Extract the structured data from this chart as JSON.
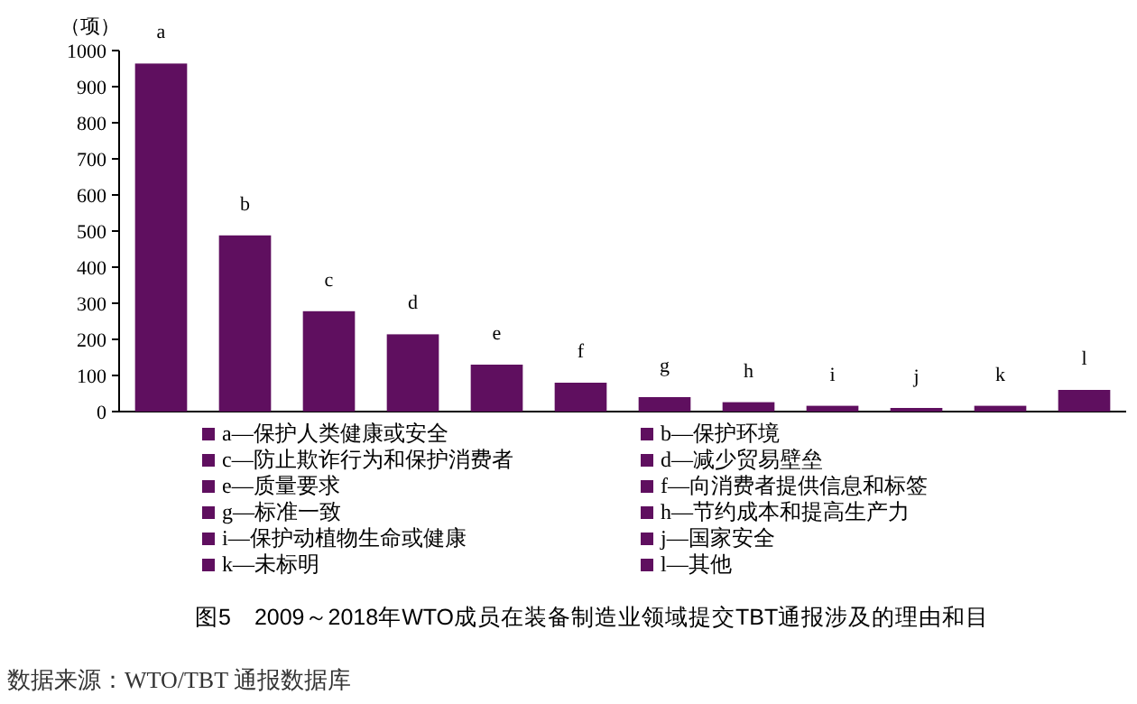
{
  "chart_data": {
    "type": "bar",
    "title": "图5　2009～2018年WTO成员在装备制造业领域提交TBT通报涉及的理由和目",
    "ylabel": "（项）",
    "annotations": [
      "数据来源：WTO/TBT 通报数据库"
    ],
    "categories": [
      "a",
      "b",
      "c",
      "d",
      "e",
      "f",
      "g",
      "h",
      "i",
      "j",
      "k",
      "l"
    ],
    "stacked": true,
    "legend": "bottom",
    "grid": false,
    "ylim": [
      0,
      1000
    ],
    "yticks": [
      0,
      100,
      200,
      300,
      400,
      500,
      600,
      700,
      800,
      900,
      1000
    ],
    "series": [
      {
        "name": "a—保护人类健康或安全",
        "color": "#5f0f5f",
        "values": [
          964,
          null,
          null,
          null,
          null,
          null,
          null,
          null,
          null,
          null,
          null,
          null
        ]
      },
      {
        "name": "b—保护环境",
        "color": "#5f0f5f",
        "values": [
          null,
          488,
          null,
          null,
          null,
          null,
          null,
          null,
          null,
          null,
          null,
          null
        ]
      },
      {
        "name": "c—防止欺诈行为和保护消费者",
        "color": "#5f0f5f",
        "values": [
          null,
          null,
          278,
          null,
          null,
          null,
          null,
          null,
          null,
          null,
          null,
          null
        ]
      },
      {
        "name": "d—减少贸易壁垒",
        "color": "#5f0f5f",
        "values": [
          null,
          null,
          null,
          214,
          null,
          null,
          null,
          null,
          null,
          null,
          null,
          null
        ]
      },
      {
        "name": "e—质量要求",
        "color": "#5f0f5f",
        "values": [
          null,
          null,
          null,
          null,
          130,
          null,
          null,
          null,
          null,
          null,
          null,
          null
        ]
      },
      {
        "name": "f—向消费者提供信息和标签",
        "color": "#5f0f5f",
        "values": [
          null,
          null,
          null,
          null,
          null,
          80,
          null,
          null,
          null,
          null,
          null,
          null
        ]
      },
      {
        "name": "g—标准一致",
        "color": "#5f0f5f",
        "values": [
          null,
          null,
          null,
          null,
          null,
          null,
          40,
          null,
          null,
          null,
          null,
          null
        ]
      },
      {
        "name": "h—节约成本和提高生产力",
        "color": "#5f0f5f",
        "values": [
          null,
          null,
          null,
          null,
          null,
          null,
          null,
          26,
          null,
          null,
          null,
          null
        ]
      },
      {
        "name": "i—保护动植物生命或健康",
        "color": "#5f0f5f",
        "values": [
          null,
          null,
          null,
          null,
          null,
          null,
          null,
          null,
          16,
          null,
          null,
          null
        ]
      },
      {
        "name": "j—国家安全",
        "color": "#5f0f5f",
        "values": [
          null,
          null,
          null,
          null,
          null,
          null,
          null,
          null,
          null,
          10,
          null,
          null
        ]
      },
      {
        "name": "k—未标明",
        "color": "#5f0f5f",
        "values": [
          null,
          null,
          null,
          null,
          null,
          null,
          null,
          null,
          null,
          null,
          16,
          null
        ]
      },
      {
        "name": "l—其他",
        "color": "#5f0f5f",
        "values": [
          null,
          null,
          null,
          null,
          null,
          null,
          null,
          null,
          null,
          null,
          null,
          60
        ]
      }
    ]
  }
}
